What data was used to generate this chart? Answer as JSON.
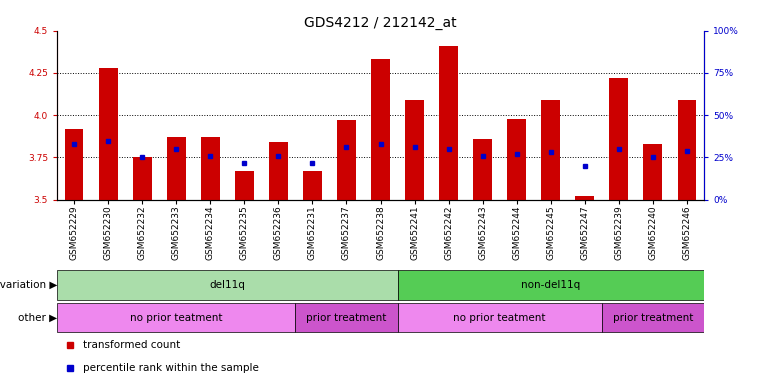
{
  "title": "GDS4212 / 212142_at",
  "samples": [
    "GSM652229",
    "GSM652230",
    "GSM652232",
    "GSM652233",
    "GSM652234",
    "GSM652235",
    "GSM652236",
    "GSM652231",
    "GSM652237",
    "GSM652238",
    "GSM652241",
    "GSM652242",
    "GSM652243",
    "GSM652244",
    "GSM652245",
    "GSM652247",
    "GSM652239",
    "GSM652240",
    "GSM652246"
  ],
  "transformed_counts": [
    3.92,
    4.28,
    3.75,
    3.87,
    3.87,
    3.67,
    3.84,
    3.67,
    3.97,
    4.33,
    4.09,
    4.41,
    3.86,
    3.98,
    4.09,
    3.52,
    4.22,
    3.83,
    4.09
  ],
  "percentile_ranks": [
    33,
    35,
    25,
    30,
    26,
    22,
    26,
    22,
    31,
    33,
    31,
    30,
    26,
    27,
    28,
    20,
    30,
    25,
    29
  ],
  "ylim_left": [
    3.5,
    4.5
  ],
  "ylim_right": [
    0,
    100
  ],
  "yticks_left": [
    3.5,
    3.75,
    4.0,
    4.25,
    4.5
  ],
  "yticks_right": [
    0,
    25,
    50,
    75,
    100
  ],
  "ytick_labels_right": [
    "0%",
    "25%",
    "50%",
    "75%",
    "100%"
  ],
  "bar_color": "#cc0000",
  "dot_color": "#0000cc",
  "bar_bottom": 3.5,
  "bar_width": 0.55,
  "grid_color": "#000000",
  "background_color": "#ffffff",
  "genotype_groups": [
    {
      "label": "del11q",
      "start": 0,
      "end": 9,
      "color": "#aaddaa"
    },
    {
      "label": "non-del11q",
      "start": 10,
      "end": 18,
      "color": "#55cc55"
    }
  ],
  "treatment_groups": [
    {
      "label": "no prior teatment",
      "start": 0,
      "end": 6,
      "color": "#ee88ee"
    },
    {
      "label": "prior treatment",
      "start": 7,
      "end": 9,
      "color": "#cc55cc"
    },
    {
      "label": "no prior teatment",
      "start": 10,
      "end": 15,
      "color": "#ee88ee"
    },
    {
      "label": "prior treatment",
      "start": 16,
      "end": 18,
      "color": "#cc55cc"
    }
  ],
  "tick_label_fontsize": 6.5,
  "title_fontsize": 10,
  "annotation_fontsize": 7.5
}
